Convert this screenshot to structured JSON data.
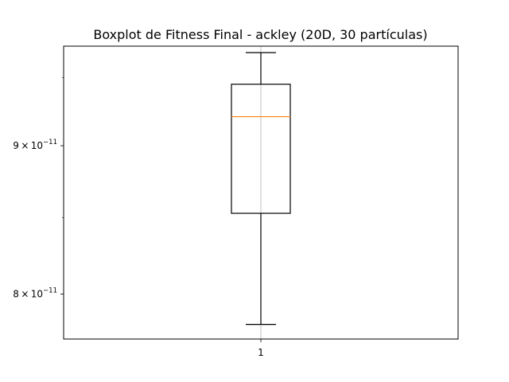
{
  "chart_data": {
    "type": "box",
    "title": "Boxplot de Fitness Final - ackley (20D, 30 partículas)",
    "xlabel": "",
    "ylabel": "",
    "yscale": "log",
    "ylim": [
      7.72e-11,
      9.74e-11
    ],
    "grid": {
      "x": true,
      "y": false
    },
    "categories": [
      "1"
    ],
    "y_ticks": [
      {
        "value": 8e-11,
        "mantissa": "8",
        "times": "×",
        "base": "10",
        "exponent": "−11"
      },
      {
        "value": 9e-11,
        "mantissa": "9",
        "times": "×",
        "base": "10",
        "exponent": "−11"
      }
    ],
    "boxes": [
      {
        "category": "1",
        "whisker_low": 7.81e-11,
        "q1": 8.53e-11,
        "median": 9.21e-11,
        "q3": 9.45e-11,
        "whisker_high": 9.69e-11
      }
    ],
    "colors": {
      "box": "#000000",
      "median": "#ff7f0e",
      "grid": "#b0b0b0"
    }
  }
}
